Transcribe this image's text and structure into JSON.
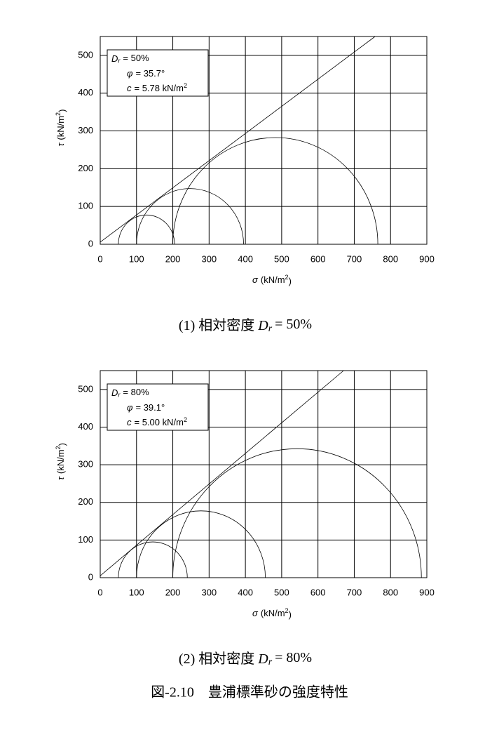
{
  "chart_data": [
    {
      "type": "mohr",
      "xlim": [
        0,
        900
      ],
      "ylim": [
        0,
        550
      ],
      "xticks": [
        0,
        100,
        200,
        300,
        400,
        500,
        600,
        700,
        800,
        900
      ],
      "yticks": [
        0,
        100,
        200,
        300,
        400,
        500
      ],
      "grid": true,
      "x_label": {
        "symbol": "σ",
        "text": "(kN/m",
        "sup": "2",
        "end": ")"
      },
      "y_label": {
        "symbol": "τ",
        "text": "(kN/m",
        "sup": "2",
        "end": ")"
      },
      "legend": [
        {
          "symbol": "D",
          "subscript": "r",
          "text": "= 50%"
        },
        {
          "symbol": "φ",
          "text": "= 35.7°"
        },
        {
          "symbol": "c",
          "text": "= 5.78 kN/m",
          "sup": "2"
        }
      ],
      "envelope": {
        "c": 5.78,
        "phi": 35.7
      },
      "circles": [
        {
          "sigma3": 50,
          "sigma1": 205
        },
        {
          "sigma3": 100,
          "sigma1": 395
        },
        {
          "sigma3": 200,
          "sigma1": 765
        }
      ],
      "caption": {
        "prefix": "(1)  相対密度",
        "symbol": "D",
        "subscript": "r",
        "text": "= 50%"
      }
    },
    {
      "type": "mohr",
      "xlim": [
        0,
        900
      ],
      "ylim": [
        0,
        550
      ],
      "xticks": [
        0,
        100,
        200,
        300,
        400,
        500,
        600,
        700,
        800,
        900
      ],
      "yticks": [
        0,
        100,
        200,
        300,
        400,
        500
      ],
      "grid": true,
      "x_label": {
        "symbol": "σ",
        "text": "(kN/m",
        "sup": "2",
        "end": ")"
      },
      "y_label": {
        "symbol": "τ",
        "text": "(kN/m",
        "sup": "2",
        "end": ")"
      },
      "legend": [
        {
          "symbol": "D",
          "subscript": "r",
          "text": "= 80%"
        },
        {
          "symbol": "φ",
          "text": "= 39.1°"
        },
        {
          "symbol": "c",
          "text": "= 5.00 kN/m",
          "sup": "2"
        }
      ],
      "envelope": {
        "c": 5.0,
        "phi": 39.1
      },
      "circles": [
        {
          "sigma3": 50,
          "sigma1": 240
        },
        {
          "sigma3": 100,
          "sigma1": 455
        },
        {
          "sigma3": 200,
          "sigma1": 885
        }
      ],
      "caption": {
        "prefix": "(2)  相対密度",
        "symbol": "D",
        "subscript": "r",
        "text": "= 80%"
      }
    }
  ],
  "figure_title": "図-2.10　豊浦標準砂の強度特性"
}
